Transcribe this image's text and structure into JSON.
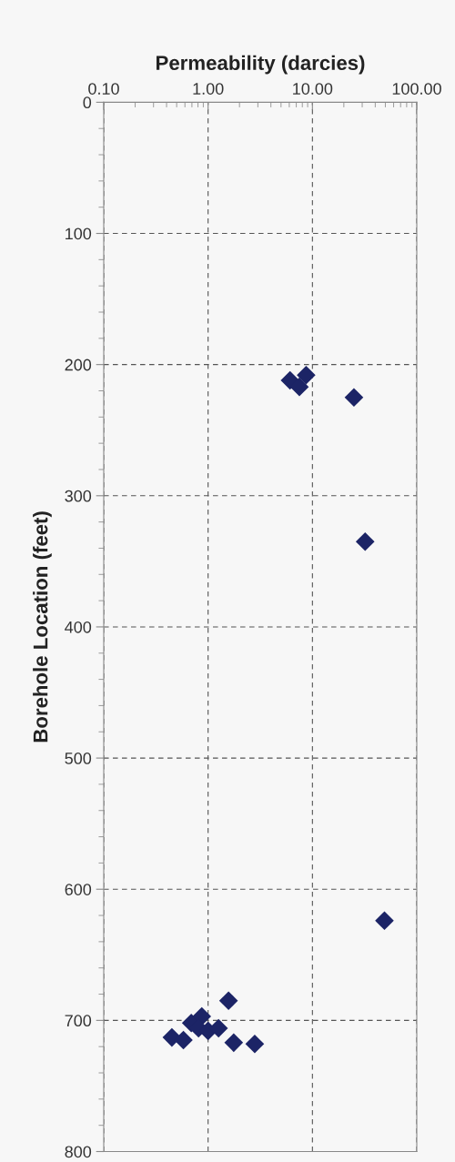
{
  "chart_data": {
    "type": "scatter",
    "xlabel": "Permeability (darcies)",
    "ylabel": "Borehole Location (feet)",
    "log": "x",
    "xlim": [
      0.1,
      100
    ],
    "ylim": [
      800,
      0
    ],
    "xticks": [
      {
        "value": 0.1,
        "label": "0.10"
      },
      {
        "value": 1,
        "label": "1.00"
      },
      {
        "value": 10,
        "label": "10.00"
      },
      {
        "value": 100,
        "label": "100.00"
      }
    ],
    "yticks": [
      0,
      100,
      200,
      300,
      400,
      500,
      600,
      700,
      800
    ],
    "grid": true,
    "marker": "diamond",
    "legend": false,
    "series": [
      {
        "color": "#1c2466",
        "x": [
          6.1,
          7.5,
          8.7,
          25,
          32,
          49,
          1.57,
          0.45,
          0.58,
          0.69,
          0.87,
          0.81,
          1.0,
          1.26,
          1.76,
          2.8
        ],
        "values": [
          212,
          217,
          208,
          225,
          335,
          624,
          685,
          713,
          715,
          702,
          697,
          706,
          708,
          706,
          717,
          718
        ]
      }
    ]
  }
}
